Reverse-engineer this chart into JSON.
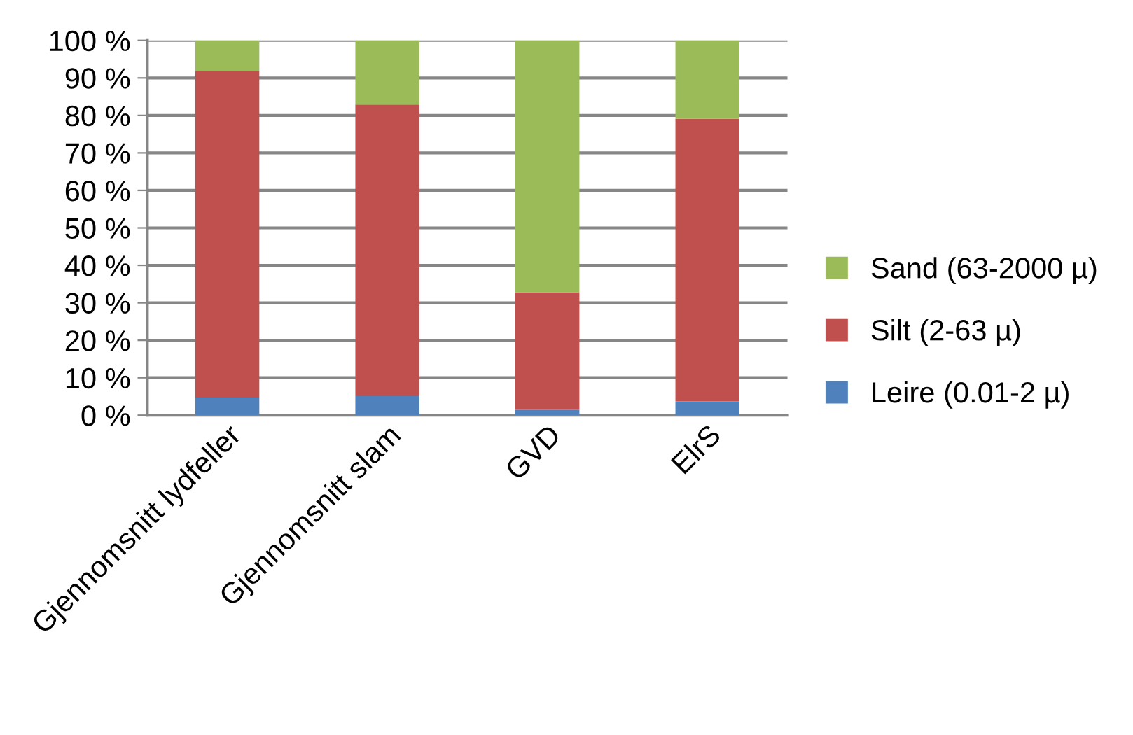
{
  "chart_data": {
    "type": "bar",
    "stacked": true,
    "categories": [
      "Gjennomsnitt lydfeller",
      "Gjennomsnitt slam",
      "GVD",
      "ElrS"
    ],
    "series": [
      {
        "name": "Leire (0.01-2 µ)",
        "color": "#4f81bd",
        "values": [
          4.7,
          5.1,
          1.5,
          3.7
        ]
      },
      {
        "name": "Silt (2-63 µ)",
        "color": "#c0504d",
        "values": [
          87.2,
          77.8,
          31.3,
          75.4
        ]
      },
      {
        "name": "Sand (63-2000 µ)",
        "color": "#9bbb59",
        "values": [
          8.1,
          17.1,
          67.2,
          20.9
        ]
      }
    ],
    "ylim": [
      0,
      100
    ],
    "yticks": [
      {
        "value": 0,
        "label": "0 %"
      },
      {
        "value": 10,
        "label": "10 %"
      },
      {
        "value": 20,
        "label": "20 %"
      },
      {
        "value": 30,
        "label": "30 %"
      },
      {
        "value": 40,
        "label": "40 %"
      },
      {
        "value": 50,
        "label": "50 %"
      },
      {
        "value": 60,
        "label": "60 %"
      },
      {
        "value": 70,
        "label": "70 %"
      },
      {
        "value": 80,
        "label": "80 %"
      },
      {
        "value": 90,
        "label": "90 %"
      },
      {
        "value": 100,
        "label": "100 %"
      }
    ],
    "grid": "y",
    "legend": "right"
  }
}
